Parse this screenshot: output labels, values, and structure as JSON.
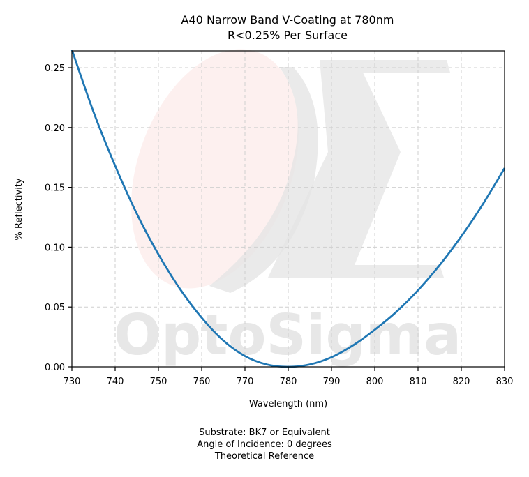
{
  "chart_data": {
    "type": "line",
    "title": [
      "A40 Narrow Band V-Coating at 780nm",
      "R<0.25% Per Surface"
    ],
    "xlabel": "Wavelength (nm)",
    "ylabel": "% Reflectivity",
    "xlim": [
      730,
      830
    ],
    "ylim": [
      0,
      0.264
    ],
    "xticks": [
      730,
      740,
      750,
      760,
      770,
      780,
      790,
      800,
      810,
      820,
      830
    ],
    "yticks": [
      "0.00",
      "0.05",
      "0.10",
      "0.15",
      "0.20",
      "0.25"
    ],
    "grid": true,
    "grid_style": "dashed",
    "series": [
      {
        "color": "#1f77b4",
        "x": [
          730,
          735,
          740,
          745,
          750,
          755,
          760,
          765,
          770,
          775,
          780,
          785,
          790,
          795,
          800,
          805,
          810,
          815,
          820,
          825,
          830
        ],
        "y": [
          0.265,
          0.213,
          0.168,
          0.128,
          0.094,
          0.065,
          0.041,
          0.022,
          0.009,
          0.002,
          0.0,
          0.002,
          0.008,
          0.018,
          0.031,
          0.046,
          0.064,
          0.085,
          0.109,
          0.136,
          0.166
        ]
      }
    ],
    "watermark": "OptoSigma",
    "footer": [
      "Substrate: BK7 or Equivalent",
      "Angle of Incidence: 0 degrees",
      "Theoretical Reference"
    ]
  }
}
